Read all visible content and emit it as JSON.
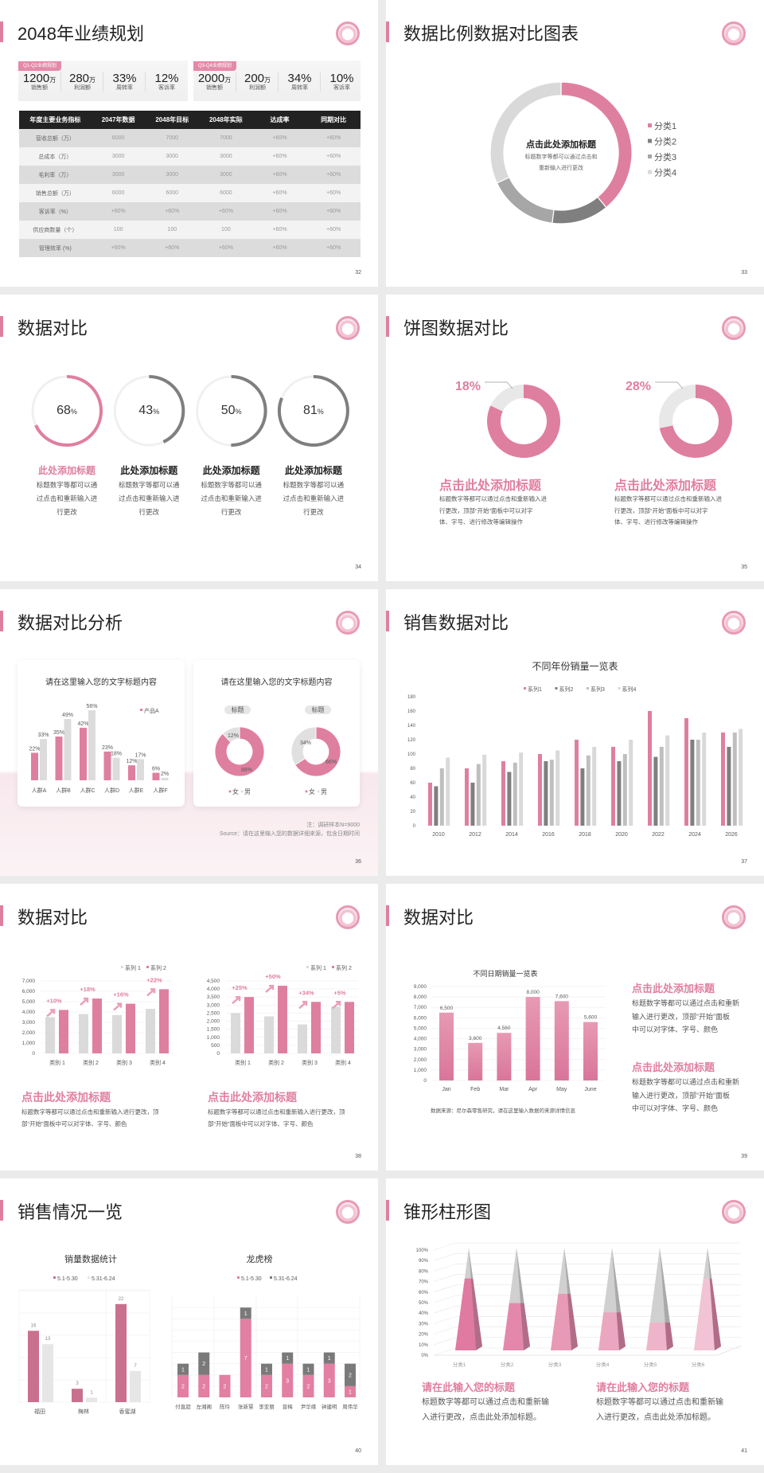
{
  "colors": {
    "pink": "#df7fa0",
    "dark_gray": "#7f7f7f",
    "gray": "#bfbfbf",
    "light_gray": "#d9d9d9",
    "table_header": "#222222"
  },
  "slides": [
    {
      "page": "32",
      "title": "2048年业绩规划",
      "groups": [
        {
          "tag": "Q1-Q2业绩规划",
          "stats": [
            {
              "value": "1200",
              "unit": "万",
              "label": "销售额"
            },
            {
              "value": "280",
              "unit": "万",
              "label": "利润额"
            },
            {
              "value": "33%",
              "unit": "",
              "label": "周转率"
            },
            {
              "value": "12%",
              "unit": "",
              "label": "客诉率"
            }
          ]
        },
        {
          "tag": "Q3-Q4业绩规划",
          "stats": [
            {
              "value": "2000",
              "unit": "万",
              "label": "销售额"
            },
            {
              "value": "200",
              "unit": "万",
              "label": "利润额"
            },
            {
              "value": "34%",
              "unit": "",
              "label": "周转率"
            },
            {
              "value": "10%",
              "unit": "",
              "label": "客诉率"
            }
          ]
        }
      ],
      "table": {
        "headers": [
          "年度主要业务指标",
          "2047年数据",
          "2048年目标",
          "2048年实际",
          "达成率",
          "同期对比"
        ],
        "rows": [
          [
            "营收总额（万）",
            "6000",
            "7000",
            "7000",
            "+60%",
            "+60%"
          ],
          [
            "总成本（万）",
            "3000",
            "3000",
            "3000",
            "+60%",
            "+60%"
          ],
          [
            "毛利率（万）",
            "3000",
            "3000",
            "3000",
            "+60%",
            "+60%"
          ],
          [
            "销售总额（万）",
            "6000",
            "6000",
            "6000",
            "+60%",
            "+60%"
          ],
          [
            "客诉率（%）",
            "+60%",
            "+60%",
            "+60%",
            "+60%",
            "+60%"
          ],
          [
            "供应商数量（个）",
            "100",
            "100",
            "100",
            "+60%",
            "+60%"
          ],
          [
            "管理效率 (%)",
            "+60%",
            "+60%",
            "+60%",
            "+60%",
            "+60%"
          ]
        ]
      }
    },
    {
      "page": "33",
      "title": "数据比例数据对比图表",
      "center_title": "点击此处添加标题",
      "center_text": [
        "标题数字等都可以通过点击和",
        "重新输入进行更改"
      ]
    },
    {
      "page": "34",
      "title": "数据对比",
      "rings": [
        {
          "value": 68,
          "unit": "%",
          "title": "此处添加标题",
          "color": "#df7fa0",
          "desc": [
            "标题数字等都可以通",
            "过点击和重新输入进",
            "行更改"
          ]
        },
        {
          "value": 43,
          "unit": "%",
          "title": "此处添加标题",
          "color": "#7f7f7f",
          "desc": [
            "标题数字等都可以通",
            "过点击和重新输入进",
            "行更改"
          ]
        },
        {
          "value": 50,
          "unit": "%",
          "title": "此处添加标题",
          "color": "#7f7f7f",
          "desc": [
            "标题数字等都可以通",
            "过点击和重新输入进",
            "行更改"
          ]
        },
        {
          "value": 81,
          "unit": "%",
          "title": "此处添加标题",
          "color": "#7f7f7f",
          "desc": [
            "标题数字等都可以通",
            "过点击和重新输入进",
            "行更改"
          ]
        }
      ]
    },
    {
      "page": "35",
      "title": "饼图数据对比",
      "blocks": [
        {
          "title": "点击此处添加标题",
          "desc": [
            "标题数字等都可以通过点击和重新输入进",
            "行更改，顶部“开始”面板中可以对字",
            "体、字号、进行修改等编辑操作"
          ]
        },
        {
          "title": "点击此处添加标题",
          "desc": [
            "标题数字等都可以通过点击和重新输入进",
            "行更改，顶部“开始”面板中可以对字",
            "体、字号、进行修改等编辑操作"
          ]
        }
      ]
    },
    {
      "page": "36",
      "title": "数据对比分析",
      "card_titles": [
        "请在这里输入您的文字标题内容",
        "请在这里输入您的文字标题内容"
      ],
      "note": "注：调研样本N=9000",
      "source": "Source：请在这里输入您的数据详细来源，包含日期时间"
    },
    {
      "page": "37",
      "title": "销售数据对比"
    },
    {
      "page": "38",
      "title": "数据对比",
      "blocks": [
        {
          "title": "点击此处添加标题",
          "desc": [
            "标题数字等都可以通过点击和重新输入进行更改，顶",
            "部“开始”面板中可以对字体、字号、颜色"
          ]
        },
        {
          "title": "点击此处添加标题",
          "desc": [
            "标题数字等都可以通过点击和重新输入进行更改，顶",
            "部“开始”面板中可以对字体、字号、颜色"
          ]
        }
      ]
    },
    {
      "page": "39",
      "title": "数据对比",
      "blocks": [
        {
          "title": "点击此处添加标题",
          "desc": [
            "标题数字等都可以通过点击和重新",
            "输入进行更改，顶部“开始”面板",
            "中可以对字体、字号、颜色"
          ]
        },
        {
          "title": "点击此处添加标题",
          "desc": [
            "标题数字等都可以通过点击和重新",
            "输入进行更改，顶部“开始”面板",
            "中可以对字体、字号、颜色"
          ]
        }
      ]
    },
    {
      "page": "40",
      "title": "销售情况一览"
    },
    {
      "page": "41",
      "title": "锥形柱形图",
      "blocks": [
        {
          "title": "请在此输入您的标题",
          "desc": [
            "标题数字等都可以通过点击和重新输",
            "入进行更改，点击此处添加标题。"
          ]
        },
        {
          "title": "请在此输入您的标题",
          "desc": [
            "标题数字等都可以通过点击和重新输",
            "入进行更改，点击此处添加标题。"
          ]
        }
      ]
    }
  ],
  "chart_data": [
    {
      "type": "pie",
      "donut": true,
      "categories": [
        "分类1",
        "分类2",
        "分类3",
        "分类4"
      ],
      "values": [
        39,
        13,
        16,
        32
      ],
      "colors": [
        "#df7fa0",
        "#7f7f7f",
        "#a6a6a6",
        "#d9d9d9"
      ],
      "legend": "right"
    },
    {
      "type": "pie",
      "donut": true,
      "values": [
        82,
        18
      ],
      "highlight_label": "18%"
    },
    {
      "type": "pie",
      "donut": true,
      "values": [
        72,
        28
      ],
      "highlight_label": "28%"
    },
    {
      "type": "bar",
      "title": "请在这里输入您的文字标题内容",
      "categories": [
        "人群A",
        "人群B",
        "人群C",
        "人群D",
        "人群E",
        "人群F"
      ],
      "legend": "top-right",
      "series": [
        {
          "name": "产品A",
          "values": [
            22,
            35,
            42,
            23,
            12,
            6
          ],
          "labels": [
            "22%",
            "35%",
            "42%",
            "23%",
            "12%",
            "6%"
          ]
        },
        {
          "values": [
            33,
            49,
            56,
            18,
            17,
            2
          ],
          "labels": [
            "33%",
            "49%",
            "56%",
            "18%",
            "17%",
            "2%"
          ]
        }
      ]
    },
    {
      "type": "pie",
      "donut": true,
      "title": "标题",
      "categories": [
        "女",
        "男"
      ],
      "values": [
        88,
        12
      ],
      "labels": [
        "88%",
        "12%"
      ],
      "legend": "bottom"
    },
    {
      "type": "pie",
      "donut": true,
      "title": "标题",
      "categories": [
        "女",
        "男"
      ],
      "values": [
        66,
        34
      ],
      "labels": [
        "66%",
        "34%"
      ],
      "legend": "bottom"
    },
    {
      "type": "bar",
      "title": "不同年份销量一览表",
      "categories": [
        "2010",
        "2012",
        "2014",
        "2016",
        "2018",
        "2020",
        "2022",
        "2024",
        "2026"
      ],
      "ylim": [
        0,
        180
      ],
      "yticks": [
        "0",
        "20",
        "40",
        "60",
        "80",
        "100",
        "120",
        "140",
        "160",
        "180"
      ],
      "legend": "top",
      "grid": false,
      "series": [
        {
          "name": "系列1",
          "values": [
            60,
            80,
            90,
            100,
            120,
            110,
            160,
            150,
            130
          ]
        },
        {
          "name": "系列2",
          "values": [
            55,
            60,
            75,
            90,
            80,
            90,
            96,
            120,
            110
          ]
        },
        {
          "name": "系列3",
          "values": [
            80,
            86,
            88,
            92,
            98,
            100,
            110,
            120,
            130
          ]
        },
        {
          "name": "系列4",
          "values": [
            95,
            99,
            102,
            105,
            110,
            120,
            126,
            130,
            135
          ]
        }
      ]
    },
    {
      "type": "bar",
      "categories": [
        "类别 1",
        "类别 2",
        "类别 3",
        "类别 4"
      ],
      "ylim": [
        0,
        7000
      ],
      "yticks": [
        "0",
        "1,000",
        "2,000",
        "3,000",
        "4,000",
        "5,000",
        "6,000",
        "7,000"
      ],
      "legend": "top-right",
      "grid": true,
      "series": [
        {
          "name": "系列 1",
          "values": [
            3500,
            3800,
            3700,
            4300
          ]
        },
        {
          "name": "系列 2",
          "values": [
            4200,
            5300,
            4800,
            6200
          ]
        }
      ],
      "annotations": [
        "+10%",
        "+18%",
        "+16%",
        "+22%"
      ]
    },
    {
      "type": "bar",
      "categories": [
        "类别 1",
        "类别 2",
        "类别 3",
        "类别 4"
      ],
      "ylim": [
        0,
        4500
      ],
      "yticks": [
        "0",
        "500",
        "1,000",
        "1,500",
        "2,000",
        "2,500",
        "3,000",
        "3,500",
        "4,000",
        "4,500"
      ],
      "legend": "top-right",
      "grid": true,
      "series": [
        {
          "name": "系列 1",
          "values": [
            2500,
            2300,
            1800,
            2900
          ]
        },
        {
          "name": "系列 2",
          "values": [
            3500,
            4200,
            3200,
            3200
          ]
        }
      ],
      "annotations": [
        "+25%",
        "+50%",
        "+34%",
        "+5%"
      ]
    },
    {
      "type": "bar",
      "title": "不同日期销量一览表",
      "categories": [
        "Jan",
        "Feb",
        "Mar",
        "Apr",
        "May",
        "June"
      ],
      "values": [
        6500,
        3600,
        4560,
        8000,
        7600,
        5600
      ],
      "labels": [
        "6,500",
        "3,600",
        "4,560",
        "8,000",
        "7,600",
        "5,600"
      ],
      "ylim": [
        0,
        9000
      ],
      "yticks": [
        "0",
        "1,000",
        "2,000",
        "3,000",
        "4,000",
        "5,000",
        "6,000",
        "7,000",
        "8,000",
        "9,000"
      ],
      "grid": true,
      "source": "数据来源：尼尔森零售研究，请在这里输入数据的来源详情信息"
    },
    {
      "type": "bar",
      "title": "销量数据统计",
      "categories": [
        "福田",
        "梅林",
        "香蜜湖"
      ],
      "legend": "top",
      "grid": true,
      "series": [
        {
          "name": "5.1-5.30",
          "values": [
            16,
            3,
            22
          ]
        },
        {
          "name": "5.31-6.24",
          "values": [
            13,
            1,
            7
          ]
        }
      ]
    },
    {
      "type": "bar",
      "stacked": true,
      "title": "龙虎榜",
      "categories": [
        "付直超",
        "左湘阁",
        "陈玲",
        "张新慧",
        "李亚丽",
        "曾梅",
        "尹华缘",
        "钟建明",
        "周伟华"
      ],
      "legend": "top",
      "grid": true,
      "series": [
        {
          "name": "5.1-5.30",
          "values": [
            2,
            2,
            2,
            7,
            2,
            3,
            2,
            3,
            1
          ]
        },
        {
          "name": "5.31-6.24",
          "values": [
            1,
            2,
            0,
            1,
            1,
            1,
            1,
            1,
            2
          ]
        }
      ]
    },
    {
      "type": "bar",
      "shape": "cone",
      "categories": [
        "分类1",
        "分类2",
        "分类3",
        "分类4",
        "分类5",
        "分类6"
      ],
      "values": [
        70,
        46,
        55,
        37,
        27,
        70
      ],
      "ylim": [
        0,
        100
      ],
      "yticks": [
        "0%",
        "10%",
        "20%",
        "30%",
        "40%",
        "50%",
        "60%",
        "70%",
        "80%",
        "90%",
        "100%"
      ],
      "grid": true
    }
  ]
}
